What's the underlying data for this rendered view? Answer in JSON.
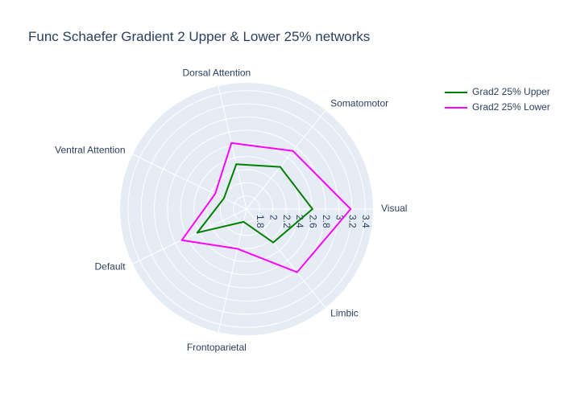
{
  "chart_data": {
    "type": "radar",
    "title": "Func Schaefer Gradient 2 Upper & Lower 25% networks",
    "categories": [
      "Visual",
      "Somatomotor",
      "Dorsal Attention",
      "Ventral Attention",
      "Default",
      "Frontoparietal",
      "Limbic"
    ],
    "series": [
      {
        "name": "Grad2 25% Upper",
        "color": "#008000",
        "values": [
          2.6,
          2.42,
          2.3,
          1.98,
          2.43,
          1.8,
          2.25
        ]
      },
      {
        "name": "Grad2 25% Lower",
        "color": "#ff00ff",
        "values": [
          3.18,
          2.73,
          2.63,
          2.13,
          2.69,
          2.22,
          2.83
        ]
      }
    ],
    "radial_range": [
      1.6,
      3.52
    ],
    "radial_ticks": [
      "1.8",
      "2",
      "2.2",
      "2.4",
      "2.6",
      "2.8",
      "3",
      "3.2",
      "3.4"
    ],
    "grid": true,
    "legend_position": "top-right",
    "polar_background": "#e5ecf6"
  }
}
